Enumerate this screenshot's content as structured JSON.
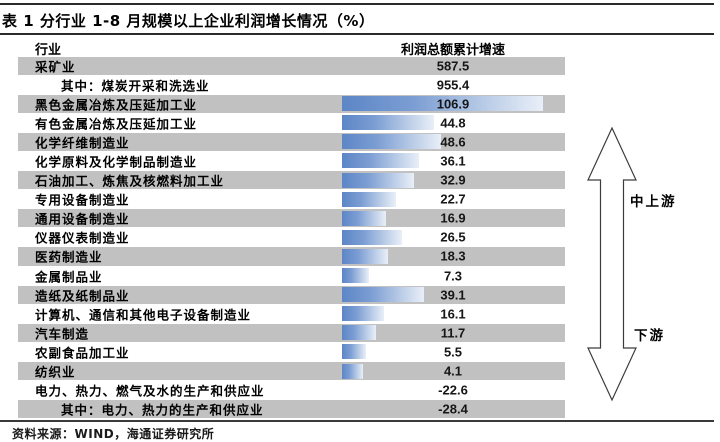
{
  "title": "表 1 分行业 1-8 月规模以上企业利润增长情况（%）",
  "header": {
    "industry_col": "行业",
    "value_col": "利润总额累计增速"
  },
  "rows": [
    {
      "industry": "采矿业",
      "value": "587.5",
      "indent": false,
      "gray": true,
      "bar": false
    },
    {
      "industry": "其中：煤炭开采和洗选业",
      "value": "955.4",
      "indent": true,
      "gray": false,
      "bar": false
    },
    {
      "industry": "黑色金属冶炼及压延加工业",
      "value": "106.9",
      "indent": false,
      "gray": true,
      "bar": true
    },
    {
      "industry": "有色金属冶炼及压延加工业",
      "value": "44.8",
      "indent": false,
      "gray": false,
      "bar": true
    },
    {
      "industry": "化学纤维制造业",
      "value": "48.6",
      "indent": false,
      "gray": true,
      "bar": true
    },
    {
      "industry": "化学原料及化学制品制造业",
      "value": "36.1",
      "indent": false,
      "gray": false,
      "bar": true
    },
    {
      "industry": "石油加工、炼焦及核燃料加工业",
      "value": "32.9",
      "indent": false,
      "gray": true,
      "bar": true
    },
    {
      "industry": "专用设备制造业",
      "value": "22.7",
      "indent": false,
      "gray": false,
      "bar": true
    },
    {
      "industry": "通用设备制造业",
      "value": "16.9",
      "indent": false,
      "gray": true,
      "bar": true
    },
    {
      "industry": "仪器仪表制造业",
      "value": "26.5",
      "indent": false,
      "gray": false,
      "bar": true
    },
    {
      "industry": "医药制造业",
      "value": "18.3",
      "indent": false,
      "gray": true,
      "bar": true
    },
    {
      "industry": "金属制品业",
      "value": "7.3",
      "indent": false,
      "gray": false,
      "bar": true
    },
    {
      "industry": "造纸及纸制品业",
      "value": "39.1",
      "indent": false,
      "gray": true,
      "bar": true
    },
    {
      "industry": "计算机、通信和其他电子设备制造业",
      "value": "16.1",
      "indent": false,
      "gray": false,
      "bar": true
    },
    {
      "industry": "汽车制造",
      "value": "11.7",
      "indent": false,
      "gray": true,
      "bar": true
    },
    {
      "industry": "农副食品加工业",
      "value": "5.5",
      "indent": false,
      "gray": false,
      "bar": true
    },
    {
      "industry": "纺织业",
      "value": "4.1",
      "indent": false,
      "gray": true,
      "bar": true
    },
    {
      "industry": "电力、热力、燃气及水的生产和供应业",
      "value": "-22.6",
      "indent": false,
      "gray": false,
      "bar": false
    },
    {
      "industry": "其中：电力、热力的生产和供应业",
      "value": "-28.4",
      "indent": true,
      "gray": true,
      "bar": false
    }
  ],
  "annotations": {
    "upstream": "中上游",
    "downstream": "下游"
  },
  "source": "资料来源：WIND，海通证券研究所",
  "colors": {
    "band_gray": "#c1c1c1",
    "bar_gradient_start": "#5d86c6",
    "bar_gradient_end": "#e9eff8",
    "rule_line": "#2a2a2a"
  },
  "chart_data": {
    "type": "bar",
    "orientation": "horizontal",
    "title": "表 1 分行业 1-8 月规模以上企业利润增长情况（%）",
    "ylabel": "利润总额累计增速",
    "xlabel": "",
    "categories": [
      "采矿业",
      "其中：煤炭开采和洗选业",
      "黑色金属冶炼及压延加工业",
      "有色金属冶炼及压延加工业",
      "化学纤维制造业",
      "化学原料及化学制品制造业",
      "石油加工、炼焦及核燃料加工业",
      "专用设备制造业",
      "通用设备制造业",
      "仪器仪表制造业",
      "医药制造业",
      "金属制品业",
      "造纸及纸制品业",
      "计算机、通信和其他电子设备制造业",
      "汽车制造",
      "农副食品加工业",
      "纺织业",
      "电力、热力、燃气及水的生产和供应业",
      "其中：电力、热力的生产和供应业"
    ],
    "values": [
      587.5,
      955.4,
      106.9,
      44.8,
      48.6,
      36.1,
      32.9,
      22.7,
      16.9,
      26.5,
      18.3,
      7.3,
      39.1,
      16.1,
      11.7,
      5.5,
      4.1,
      -22.6,
      -28.4
    ],
    "bars_drawn_for": "values between 0 and ~110 only; extreme and negative values shown as text without bars",
    "annotations": [
      "中上游",
      "下游"
    ],
    "grid": false,
    "legend": "none",
    "source": "资料来源：WIND，海通证券研究所"
  }
}
